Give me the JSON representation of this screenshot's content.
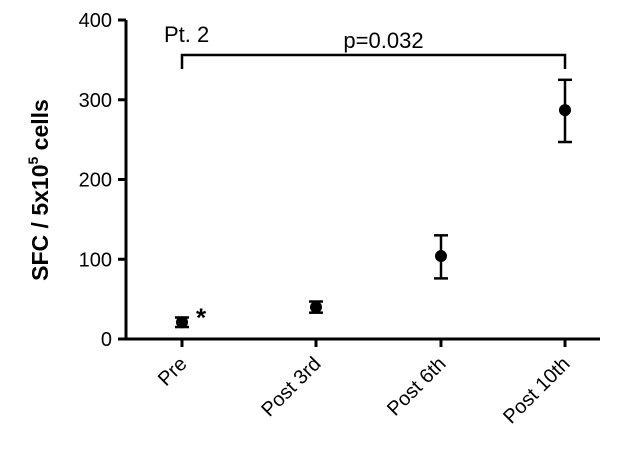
{
  "chart_data": {
    "type": "scatter",
    "title": "",
    "panel_label": "Pt. 2",
    "categories": [
      "Pre",
      "Post 3rd",
      "Post 6th",
      "Post 10th"
    ],
    "values": [
      21,
      40,
      104,
      287
    ],
    "error_low": [
      15,
      33,
      76,
      247
    ],
    "error_high": [
      27,
      47,
      130,
      325
    ],
    "ylabel": {
      "prefix": "SFC / 5x10",
      "superscript": "5",
      "suffix": " cells"
    },
    "xlabel": "",
    "ylim": [
      0,
      400
    ],
    "yticks": [
      "0",
      "100",
      "200",
      "300",
      "400"
    ],
    "grid": false,
    "significance": {
      "from": "Pre",
      "to": "Post 10th",
      "label": "p=0.032"
    },
    "point_annotations": [
      {
        "category": "Pre",
        "text": "*"
      }
    ],
    "colors": {
      "marker": "#000000",
      "axis": "#000000"
    }
  }
}
